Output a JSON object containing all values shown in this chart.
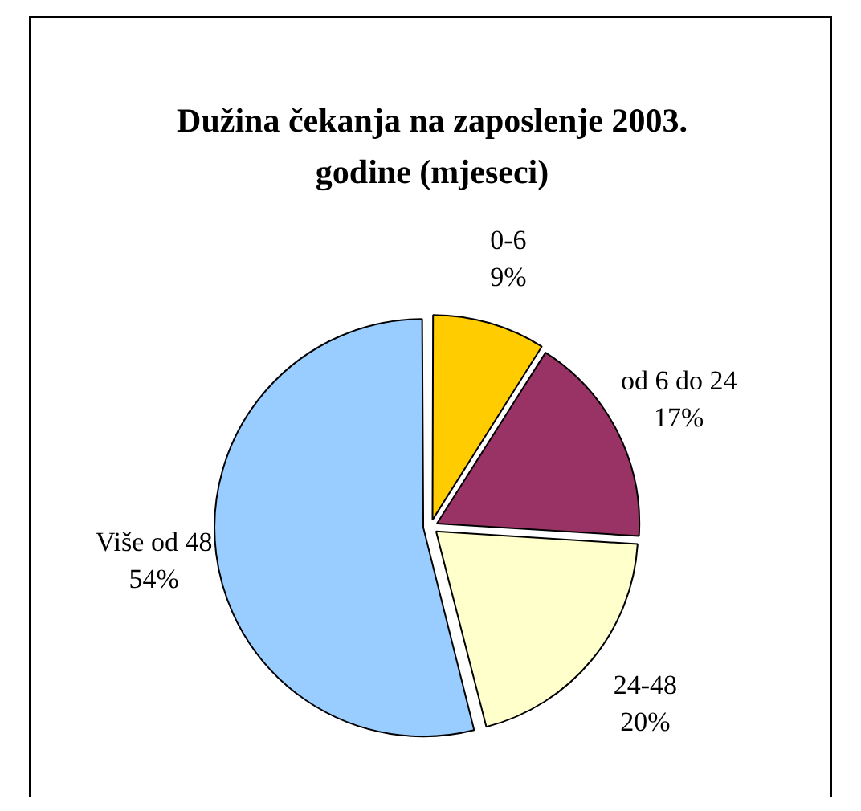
{
  "chart_data": {
    "type": "pie",
    "title": "Dužina čekanja na zaposlenje 2003. godine (mjeseci)",
    "categories": [
      "0-6",
      "od 6 do 24",
      "24-48",
      "Više od 48"
    ],
    "values": [
      9,
      17,
      20,
      54
    ],
    "value_labels": [
      "9%",
      "17%",
      "20%",
      "54%"
    ],
    "colors": [
      "#ffcc00",
      "#993366",
      "#ffffcc",
      "#99ccff"
    ],
    "legend": false
  }
}
